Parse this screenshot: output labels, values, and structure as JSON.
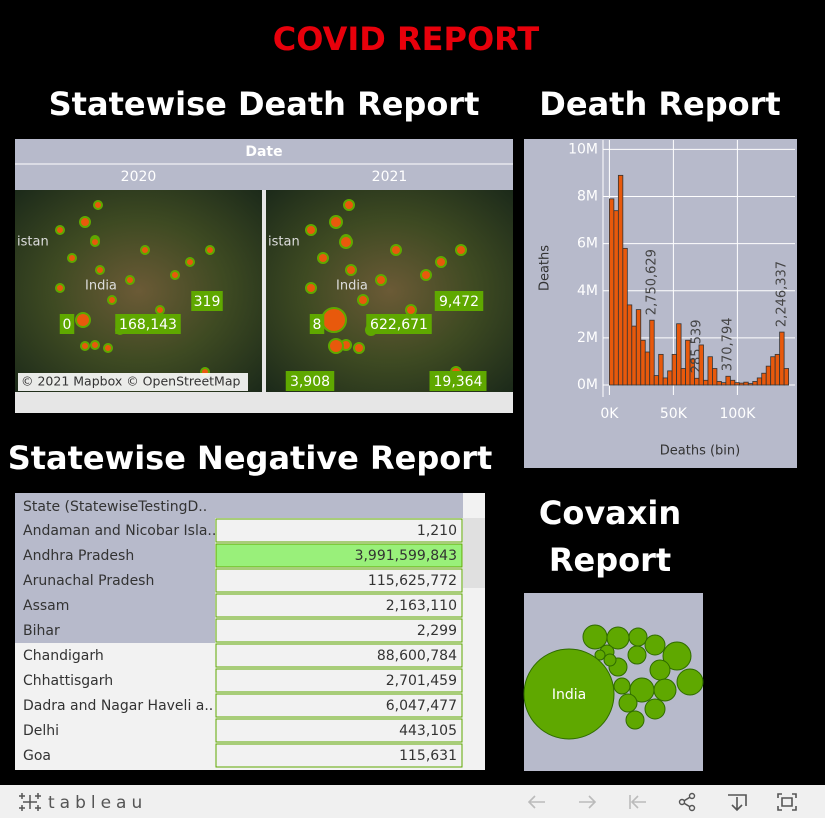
{
  "title": "COVID REPORT",
  "death_map": {
    "title": "Statewise Death Report",
    "header": "Date",
    "panels": [
      {
        "year": "2020",
        "place_labels": [
          "istan",
          "India"
        ],
        "labels": [
          "319",
          "0",
          "168,143"
        ]
      },
      {
        "year": "2021",
        "place_labels": [
          "istan",
          "India"
        ],
        "labels": [
          "9,472",
          "8",
          "622,671",
          "3,908",
          "19,364"
        ]
      }
    ],
    "attribution": "© 2021 Mapbox  © OpenStreetMap"
  },
  "chart_data": {
    "type": "histogram",
    "title": "Death Report",
    "y_label": "Deaths",
    "x_label": "Deaths (bin)",
    "color": "#e8590c",
    "grid": true,
    "bins": [
      0,
      3500,
      7000,
      10500,
      14000,
      17500,
      21000,
      24500,
      28000,
      31500,
      35000,
      38500,
      42000,
      45500,
      49000,
      52500,
      56000,
      59500,
      63000,
      66500,
      70000,
      73500,
      77000,
      80500,
      84000,
      87500,
      91000,
      94500,
      98000,
      101500,
      105000,
      108500,
      112000,
      115500,
      119000,
      122500,
      126000,
      129500,
      133000,
      136500,
      140000
    ],
    "values": [
      7900000,
      7400000,
      8900000,
      5800000,
      3400000,
      2500000,
      3200000,
      1900000,
      1400000,
      2750629,
      400000,
      1300000,
      300000,
      600000,
      1300000,
      2600000,
      700000,
      1900000,
      1100000,
      285539,
      1700000,
      200000,
      1200000,
      700000,
      150000,
      100000,
      370794,
      200000,
      100000,
      80000,
      120000,
      60000,
      150000,
      300000,
      500000,
      800000,
      1200000,
      1300000,
      2246337,
      700000
    ],
    "value_labels": [
      null,
      null,
      null,
      null,
      null,
      null,
      null,
      null,
      null,
      "2,750,629",
      null,
      null,
      null,
      null,
      null,
      null,
      null,
      null,
      null,
      "285,539",
      null,
      null,
      null,
      null,
      null,
      null,
      "370,794",
      null,
      null,
      null,
      null,
      null,
      null,
      null,
      null,
      null,
      null,
      null,
      "2,246,337",
      null
    ],
    "xlim": [
      -5000,
      145000
    ],
    "ylim": [
      0,
      10400000
    ],
    "xticks": [
      {
        "value": 0,
        "label": "0K"
      },
      {
        "value": 50000,
        "label": "50K"
      },
      {
        "value": 100000,
        "label": "100K"
      }
    ],
    "yticks": [
      {
        "value": 0,
        "label": "0M"
      },
      {
        "value": 2000000,
        "label": "2M"
      },
      {
        "value": 4000000,
        "label": "4M"
      },
      {
        "value": 6000000,
        "label": "6M"
      },
      {
        "value": 8000000,
        "label": "8M"
      },
      {
        "value": 10000000,
        "label": "10M"
      }
    ]
  },
  "negative_table": {
    "title": "Statewise Negative Report",
    "header": "State (StatewiseTestingD..",
    "rows": [
      [
        "Andaman and Nicobar Isla..",
        "1,210"
      ],
      [
        "Andhra Pradesh",
        "3,991,599,843"
      ],
      [
        "Arunachal Pradesh",
        "115,625,772"
      ],
      [
        "Assam",
        "2,163,110"
      ],
      [
        "Bihar",
        "2,299"
      ],
      [
        "Chandigarh",
        "88,600,784"
      ],
      [
        "Chhattisgarh",
        "2,701,459"
      ],
      [
        "Dadra and Nagar Haveli a..",
        "6,047,477"
      ],
      [
        "Delhi",
        "443,105"
      ],
      [
        "Goa",
        "115,631"
      ]
    ]
  },
  "covaxin": {
    "title": "Covaxin Report",
    "bubble_label": "India"
  },
  "toolbar": {
    "logo": "tableau"
  }
}
